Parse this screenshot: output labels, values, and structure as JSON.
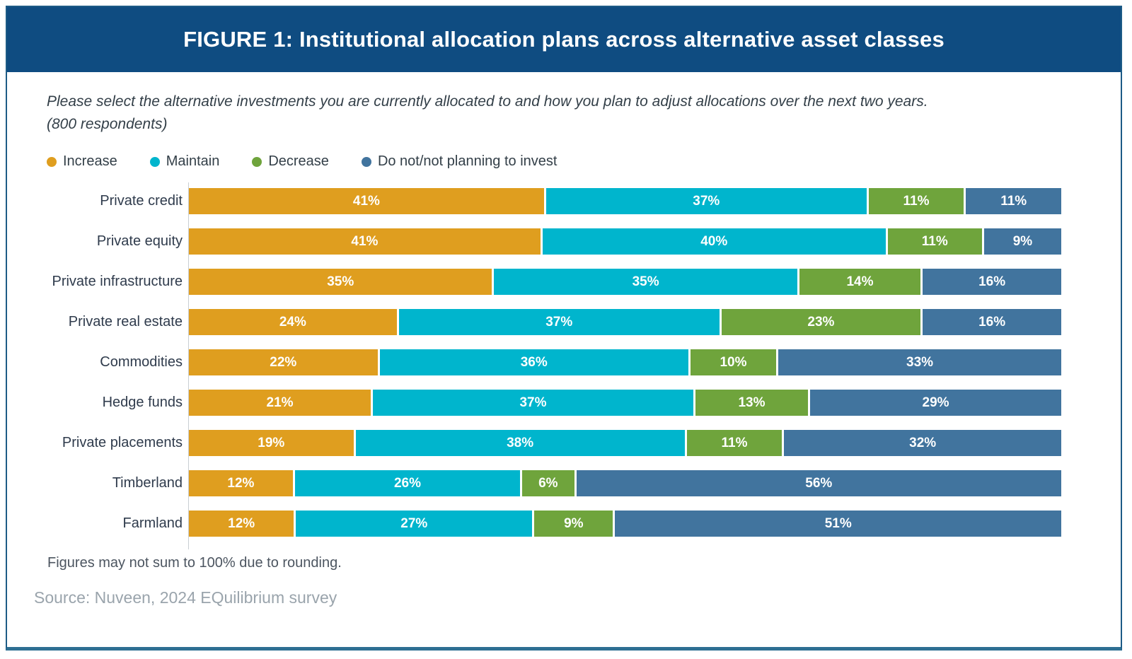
{
  "header": {
    "title": "FIGURE 1: Institutional allocation plans across alternative asset classes"
  },
  "subtitle": {
    "line1": "Please select the alternative investments you are currently allocated to and how you plan to adjust allocations over the next two years.",
    "line2": "(800 respondents)"
  },
  "chart_data": {
    "type": "bar",
    "stacked": true,
    "orientation": "horizontal",
    "title": "FIGURE 1: Institutional allocation plans across alternative asset classes",
    "value_suffix": "%",
    "xlim": [
      0,
      100
    ],
    "legend_position": "top",
    "grid": false,
    "categories": [
      "Private credit",
      "Private equity",
      "Private infrastructure",
      "Private real estate",
      "Commodities",
      "Hedge funds",
      "Private placements",
      "Timberland",
      "Farmland"
    ],
    "series": [
      {
        "name": "Increase",
        "color": "#DF9E1F",
        "values": [
          41,
          41,
          35,
          24,
          22,
          21,
          19,
          12,
          12
        ]
      },
      {
        "name": "Maintain",
        "color": "#00B5CD",
        "values": [
          37,
          40,
          35,
          37,
          36,
          37,
          38,
          26,
          27
        ]
      },
      {
        "name": "Decrease",
        "color": "#6FA43C",
        "values": [
          11,
          11,
          14,
          23,
          10,
          13,
          11,
          6,
          9
        ]
      },
      {
        "name": "Do not/not planning to invest",
        "color": "#41749E",
        "values": [
          11,
          9,
          16,
          16,
          33,
          29,
          32,
          56,
          51
        ]
      }
    ]
  },
  "footnotes": {
    "rounding": "Figures may not sum to 100% due to rounding.",
    "source": "Source: Nuveen, 2024 EQuilibrium survey"
  },
  "colors": {
    "header_bg": "#0F4C81",
    "frame_border": "#1D5B86",
    "frame_bottom": "#2E6F93",
    "axis_line": "#C9CED3",
    "category_text": "#2F3B4C",
    "footnote_text": "#4C5560",
    "source_text": "#9AA4AC",
    "segment_value_text": "#FFFFFF"
  }
}
